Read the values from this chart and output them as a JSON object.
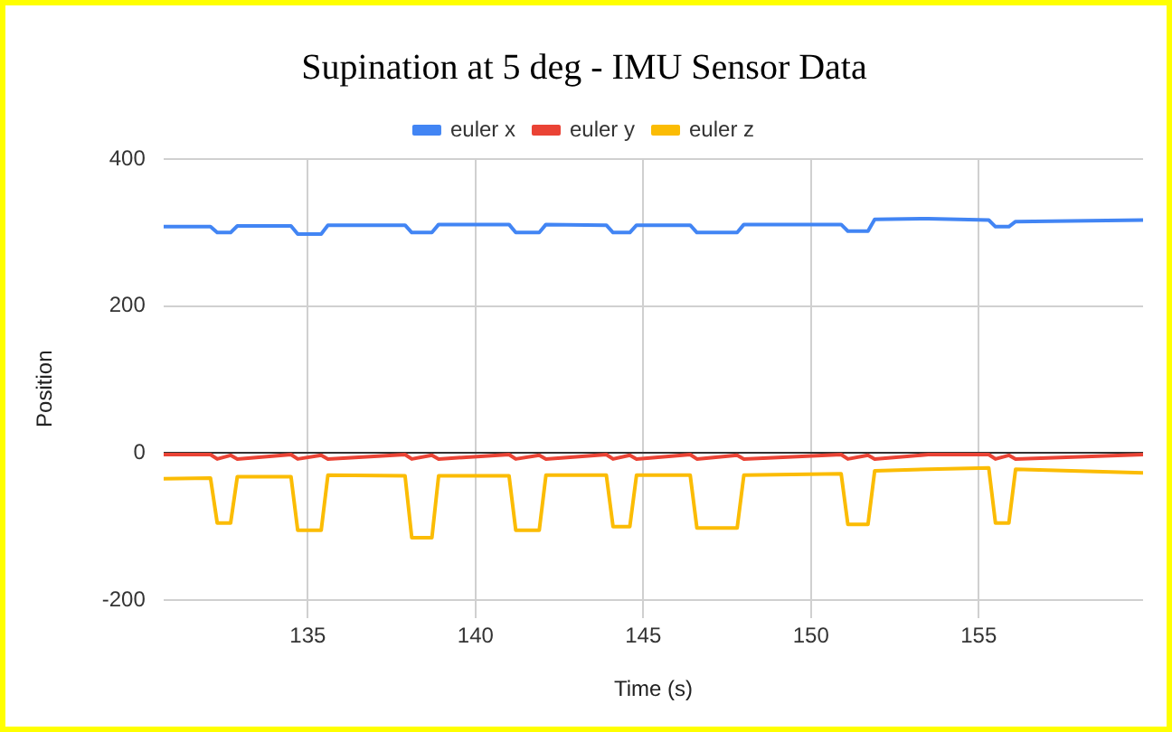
{
  "chart_data": {
    "type": "line",
    "title": "Supination at 5 deg - IMU Sensor Data",
    "xlabel": "Time (s)",
    "ylabel": "Position",
    "x": [
      130.7,
      132.1,
      132.3,
      132.7,
      132.9,
      134.5,
      134.7,
      135.4,
      135.6,
      137.9,
      138.1,
      138.7,
      138.9,
      141.0,
      141.2,
      141.9,
      142.1,
      143.9,
      144.1,
      144.6,
      144.8,
      146.4,
      146.6,
      147.8,
      148.0,
      150.9,
      151.1,
      151.7,
      151.9,
      153.5,
      155.3,
      155.5,
      155.9,
      156.1,
      159.9
    ],
    "series": [
      {
        "name": "euler x",
        "color": "#4285f4",
        "values": [
          308,
          308,
          300,
          300,
          309,
          309,
          298,
          298,
          310,
          310,
          300,
          300,
          311,
          311,
          300,
          300,
          311,
          310,
          300,
          300,
          310,
          310,
          300,
          300,
          311,
          311,
          302,
          302,
          318,
          319,
          317,
          308,
          308,
          315,
          317
        ]
      },
      {
        "name": "euler y",
        "color": "#ea4335",
        "values": [
          -2,
          -2,
          -8,
          -3,
          -8,
          -2,
          -8,
          -3,
          -8,
          -2,
          -8,
          -3,
          -8,
          -2,
          -8,
          -3,
          -8,
          -2,
          -8,
          -3,
          -8,
          -2,
          -8,
          -3,
          -8,
          -2,
          -8,
          -3,
          -8,
          -2,
          -2,
          -8,
          -3,
          -8,
          -2
        ]
      },
      {
        "name": "euler z",
        "color": "#fbbc04",
        "values": [
          -35,
          -34,
          -95,
          -95,
          -32,
          -32,
          -105,
          -105,
          -30,
          -31,
          -115,
          -115,
          -31,
          -31,
          -105,
          -105,
          -30,
          -30,
          -100,
          -100,
          -30,
          -30,
          -102,
          -102,
          -30,
          -28,
          -97,
          -97,
          -24,
          -22,
          -20,
          -95,
          -95,
          -22,
          -27
        ]
      }
    ],
    "xlim": [
      130.7,
      159.9
    ],
    "xticks": [
      135,
      140,
      145,
      150,
      155
    ],
    "ylim": [
      -225,
      400
    ],
    "yticks": [
      -200,
      0,
      200,
      400
    ],
    "grid": true,
    "legend": "top",
    "marker": "none",
    "line_style": "solid"
  }
}
